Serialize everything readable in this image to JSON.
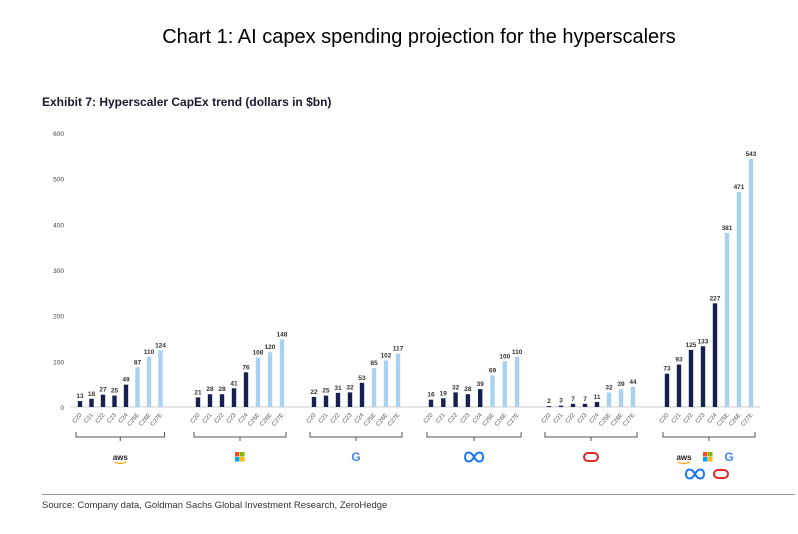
{
  "header": {
    "title": "Chart 1: AI capex spending projection for the hyperscalers"
  },
  "chart_data": {
    "type": "bar",
    "title": "Exhibit 7: Hyperscaler CapEx trend (dollars in $bn)",
    "xlabel": "",
    "ylabel": "",
    "ylim": [
      0,
      600
    ],
    "yticks": [
      0,
      100,
      200,
      300,
      400,
      500,
      600
    ],
    "categories": [
      "C20",
      "C21",
      "C22",
      "C23",
      "C24",
      "C25E",
      "C26E",
      "C27E"
    ],
    "colors": {
      "actual": "#14204f",
      "estimate": "#a9d2f0"
    },
    "groups": [
      {
        "logo": "aws-logo",
        "values": [
          13,
          18,
          27,
          25,
          49,
          87,
          110,
          124
        ]
      },
      {
        "logo": "microsoft-logo",
        "values": [
          21,
          28,
          28,
          41,
          76,
          108,
          120,
          148
        ]
      },
      {
        "logo": "google-logo",
        "values": [
          22,
          25,
          31,
          32,
          53,
          85,
          102,
          117
        ]
      },
      {
        "logo": "meta-logo",
        "values": [
          16,
          19,
          32,
          28,
          39,
          69,
          100,
          110
        ]
      },
      {
        "logo": "oracle-logo",
        "values": [
          2,
          3,
          7,
          7,
          11,
          32,
          39,
          44
        ]
      },
      {
        "logo": "all-hyperscalers-logos",
        "values": [
          73,
          93,
          125,
          133,
          227,
          381,
          471,
          543
        ]
      }
    ],
    "grid": false,
    "legend": "none"
  },
  "footer": {
    "source": "Source: Company data, Goldman Sachs Global Investment Research, ZeroHedge"
  }
}
